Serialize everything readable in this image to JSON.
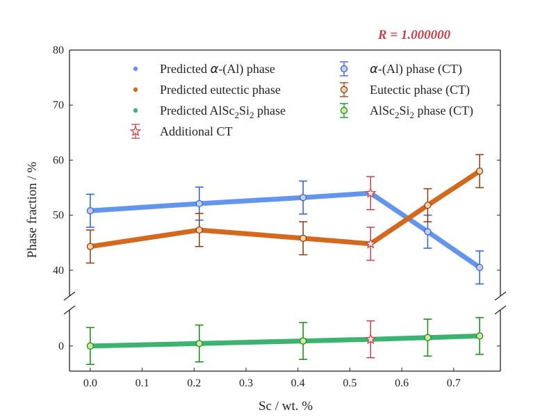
{
  "chart_data": {
    "type": "line",
    "annotation": "R = 1.000000",
    "xlabel": "Sc / wt. %",
    "ylabel": "Phase fraction / %",
    "xlim": [
      -0.04,
      0.79
    ],
    "ylim_upper": [
      35.3,
      80
    ],
    "ylim_lower": [
      -3,
      4.3
    ],
    "broken_y_axis": true,
    "x_ticks": [
      "0.0",
      "0.1",
      "0.2",
      "0.3",
      "0.4",
      "0.5",
      "0.6",
      "0.7"
    ],
    "y_ticks_upper": [
      "40",
      "50",
      "60",
      "70",
      "80"
    ],
    "y_ticks_lower": [
      "0"
    ],
    "colors": {
      "alpha_pred": "#6495ED",
      "eutectic_pred": "#D2691E",
      "alsc_pred": "#3CB371",
      "alpha_ct": "#2E5FD0",
      "eutectic_ct": "#8B3A0F",
      "alsc_ct": "#138A13",
      "additional_ct": "#C0444A",
      "annotation": "#C0444A"
    },
    "x": [
      0.0,
      0.21,
      0.41,
      0.54,
      0.65,
      0.75
    ],
    "predicted": [
      {
        "name": "Predicted α-(Al) phase",
        "values": [
          50.8,
          52.1,
          53.2,
          54.0,
          47.0,
          40.5
        ]
      },
      {
        "name": "Predicted eutectic phase",
        "values": [
          44.3,
          47.3,
          45.8,
          44.8,
          51.8,
          58.0
        ]
      },
      {
        "name": "Predicted AlSc₂Si₂ phase",
        "values": [
          0.0,
          0.3,
          0.6,
          0.8,
          1.0,
          1.2
        ]
      }
    ],
    "ct": [
      {
        "name": "α-(Al) phase (CT)",
        "x": [
          0.0,
          0.21,
          0.41,
          0.65,
          0.75
        ],
        "values": [
          50.8,
          52.1,
          53.2,
          47.0,
          40.5
        ],
        "error": 3.0
      },
      {
        "name": "Eutectic phase (CT)",
        "x": [
          0.0,
          0.21,
          0.41,
          0.65,
          0.75
        ],
        "values": [
          44.3,
          47.3,
          45.8,
          51.8,
          58.0
        ],
        "error": 3.0
      },
      {
        "name": "AlSc₂Si₂ phase (CT)",
        "x": [
          0.0,
          0.21,
          0.41,
          0.65,
          0.75
        ],
        "values": [
          0.0,
          0.3,
          0.6,
          1.0,
          1.2
        ],
        "error": 2.2
      }
    ],
    "additional_ct": {
      "name": "Additional CT",
      "x": 0.54,
      "values": [
        54.0,
        44.8,
        0.8
      ],
      "errors": [
        3.0,
        3.0,
        2.2
      ]
    },
    "legend": {
      "placement": "top",
      "left": [
        {
          "label_pre": "Predicted ",
          "label_greek": "α",
          "label_post": "-(Al) phase"
        },
        {
          "label_pre": "Predicted eutectic phase",
          "label_greek": "",
          "label_post": ""
        },
        {
          "label_pre": "Predicted AlSc",
          "sub1": "2",
          "label_mid": "Si",
          "sub2": "2",
          "label_post": " phase"
        },
        {
          "label_pre": "Additional CT",
          "label_greek": "",
          "label_post": ""
        }
      ],
      "right": [
        {
          "label_pre": "",
          "label_greek": "α",
          "label_post": "-(Al) phase (CT)"
        },
        {
          "label_pre": "Eutectic phase (CT)",
          "label_greek": "",
          "label_post": ""
        },
        {
          "label_pre": "AlSc",
          "sub1": "2",
          "label_mid": "Si",
          "sub2": "2",
          "label_post": " phase (CT)"
        }
      ]
    }
  }
}
